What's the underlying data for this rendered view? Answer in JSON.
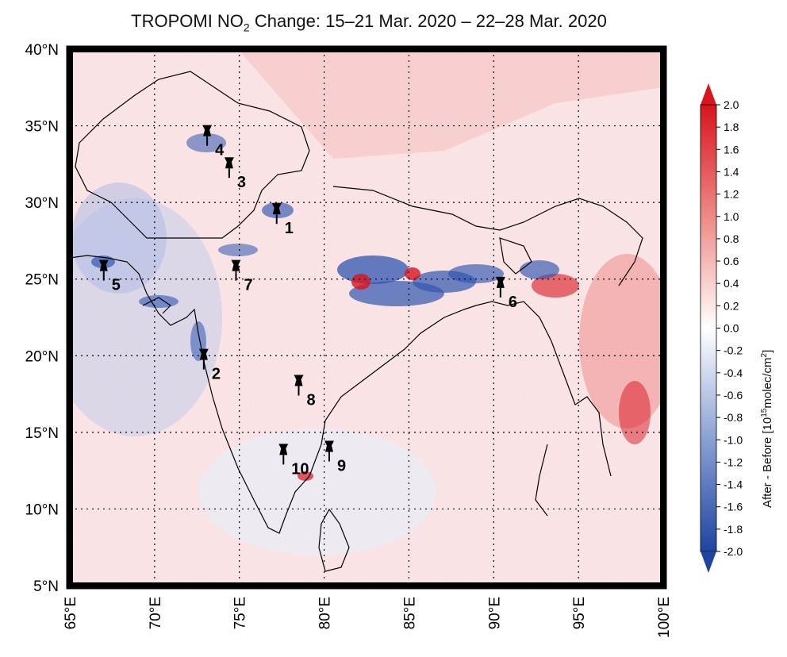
{
  "title": {
    "prefix": "TROPOMI NO",
    "subscript": "2",
    "suffix": " Change: 15–21 Mar. 2020 – 22–28 Mar. 2020"
  },
  "map": {
    "lon_range": [
      65,
      100
    ],
    "lat_range": [
      5,
      40
    ],
    "lon_ticks": [
      {
        "value": 65,
        "label": "65°E"
      },
      {
        "value": 70,
        "label": "70°E"
      },
      {
        "value": 75,
        "label": "75°E"
      },
      {
        "value": 80,
        "label": "80°E"
      },
      {
        "value": 85,
        "label": "85°E"
      },
      {
        "value": 90,
        "label": "90°E"
      },
      {
        "value": 95,
        "label": "95°E"
      },
      {
        "value": 100,
        "label": "100°E"
      }
    ],
    "lat_ticks": [
      {
        "value": 40,
        "label": "40°N"
      },
      {
        "value": 35,
        "label": "35°N"
      },
      {
        "value": 30,
        "label": "30°N"
      },
      {
        "value": 25,
        "label": "25°N"
      },
      {
        "value": 20,
        "label": "20°N"
      },
      {
        "value": 15,
        "label": "15°N"
      },
      {
        "value": 10,
        "label": "10°N"
      },
      {
        "value": 5,
        "label": "5°N"
      }
    ],
    "grid": true
  },
  "markers": [
    {
      "label": "1",
      "lon": 77.2,
      "lat": 28.6
    },
    {
      "label": "2",
      "lon": 72.9,
      "lat": 19.1
    },
    {
      "label": "3",
      "lon": 74.4,
      "lat": 31.6
    },
    {
      "label": "4",
      "lon": 73.1,
      "lat": 33.7
    },
    {
      "label": "5",
      "lon": 67.0,
      "lat": 24.9
    },
    {
      "label": "6",
      "lon": 90.4,
      "lat": 23.8
    },
    {
      "label": "7",
      "lon": 74.8,
      "lat": 24.9
    },
    {
      "label": "8",
      "lon": 78.5,
      "lat": 17.4
    },
    {
      "label": "9",
      "lon": 80.3,
      "lat": 13.1
    },
    {
      "label": "10",
      "lon": 77.6,
      "lat": 12.9
    }
  ],
  "colorbar": {
    "min": -2.0,
    "max": 2.0,
    "tick_labels": [
      "2.0",
      "1.8",
      "1.6",
      "1.4",
      "1.2",
      "1.0",
      "0.8",
      "0.6",
      "0.4",
      "0.2",
      "0.0",
      "-0.2",
      "-0.4",
      "-0.6",
      "-0.8",
      "-1.0",
      "-1.2",
      "-1.4",
      "-1.6",
      "-1.8",
      "-2.0"
    ],
    "label_prefix": "After - Before [10",
    "label_sup1": "15",
    "label_mid": "molec/cm",
    "label_sup2": "2",
    "label_suffix": "]",
    "color_high": "#d8141e",
    "color_zero": "#ffffff",
    "color_low": "#1f44a0"
  }
}
